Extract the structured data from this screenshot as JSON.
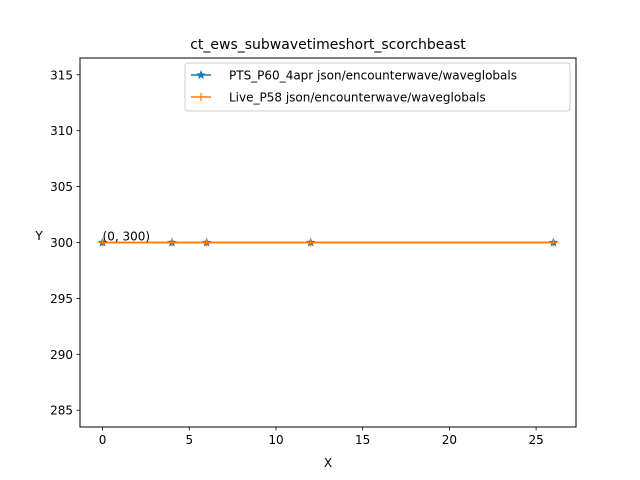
{
  "chart_data": {
    "type": "line",
    "title": "ct_ews_subwavetimeshort_scorchbeast",
    "xlabel": "X",
    "ylabel": "Y",
    "xlim": [
      -1.3,
      27.3
    ],
    "ylim": [
      283.5,
      316.5
    ],
    "xticks": [
      0,
      5,
      10,
      15,
      20,
      25
    ],
    "yticks": [
      285,
      290,
      295,
      300,
      305,
      310,
      315
    ],
    "grid": false,
    "legend_position": "top-right",
    "series": [
      {
        "name": "PTS_P60_4apr json/encounterwave/waveglobals",
        "color": "#1f77b4",
        "marker": "star",
        "x": [
          0,
          4,
          6,
          12,
          26
        ],
        "y": [
          300,
          300,
          300,
          300,
          300
        ]
      },
      {
        "name": "Live_P58 json/encounterwave/waveglobals",
        "color": "#ff7f0e",
        "marker": "plus",
        "x": [
          0,
          4,
          6,
          12,
          26
        ],
        "y": [
          300,
          300,
          300,
          300,
          300
        ]
      }
    ],
    "annotations": [
      {
        "text": "(0, 300)",
        "x": 0,
        "y": 300
      }
    ]
  }
}
